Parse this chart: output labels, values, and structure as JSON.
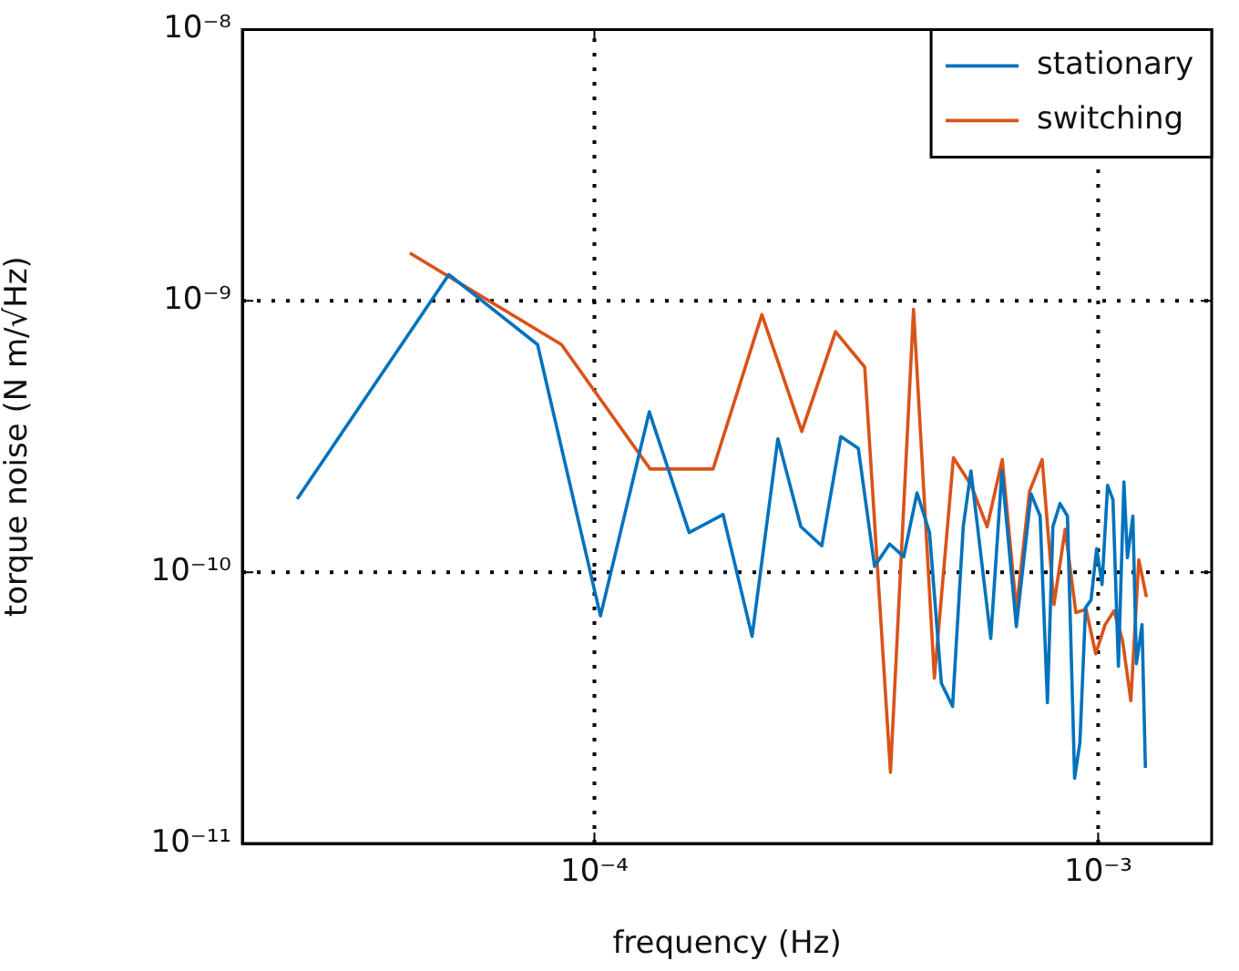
{
  "chart_data": {
    "type": "line",
    "xlabel": "frequency (Hz)",
    "ylabel": "torque noise (N m/√Hz)",
    "log": "xy",
    "grid": true,
    "legend": "top right",
    "line_style": "solid",
    "marker": "none",
    "xlim": [
      2e-05,
      0.00168
    ],
    "ylim": [
      1e-11,
      1e-08
    ],
    "xticks": [
      {
        "value": 0.0001,
        "label": "10⁻⁴"
      },
      {
        "value": 0.001,
        "label": "10⁻³"
      }
    ],
    "yticks": [
      {
        "value": 1e-11,
        "label": "10⁻¹¹"
      },
      {
        "value": 1e-10,
        "label": "10⁻¹⁰"
      },
      {
        "value": 1e-09,
        "label": "10⁻⁹"
      },
      {
        "value": 1e-08,
        "label": "10⁻⁸"
      }
    ],
    "series": [
      {
        "name": "stationary",
        "color": "#0072bd",
        "x": [
          2.57e-05,
          5.14e-05,
          7.71e-05,
          0.0001028,
          0.0001285,
          0.0001542,
          0.00018,
          0.0002056,
          0.0002313,
          0.000257,
          0.0002827,
          0.0003084,
          0.0003341,
          0.0003598,
          0.0003855,
          0.0004112,
          0.0004369,
          0.0004626,
          0.0004883,
          0.000514,
          0.0005397,
          0.000559,
          0.000612,
          0.000644,
          0.000688,
          0.000736,
          0.000767,
          0.000793,
          0.000813,
          0.00084,
          0.000869,
          0.000898,
          0.00092,
          0.000944,
          0.000968,
          0.000993,
          0.001018,
          0.001044,
          0.00107,
          0.001097,
          0.001125,
          0.001143,
          0.001172,
          0.001191,
          0.001222,
          0.001241
        ],
        "values": [
          1.86e-10,
          1.25e-09,
          6.9e-10,
          6.9e-11,
          3.9e-10,
          1.4e-10,
          1.63e-10,
          5.8e-11,
          3.1e-10,
          1.47e-10,
          1.25e-10,
          3.16e-10,
          2.86e-10,
          1.05e-10,
          1.27e-10,
          1.14e-10,
          1.96e-10,
          1.4e-10,
          3.9e-11,
          3.2e-11,
          1.47e-10,
          2.36e-10,
          5.7e-11,
          2.36e-10,
          6.3e-11,
          1.94e-10,
          1.61e-10,
          3.3e-11,
          1.47e-10,
          1.79e-10,
          1.61e-10,
          1.74e-11,
          2.36e-11,
          7.4e-11,
          7.9e-11,
          1.22e-10,
          9e-11,
          2.09e-10,
          1.85e-10,
          4.5e-11,
          2.15e-10,
          1.13e-10,
          1.61e-10,
          4.6e-11,
          6.4e-11,
          1.9e-11
        ]
      },
      {
        "name": "switching",
        "color": "#d95319",
        "x": [
          4.3e-05,
          8.6e-05,
          0.000129,
          0.000172,
          0.000215,
          0.000258,
          0.000301,
          0.000344,
          0.000387,
          0.00043,
          0.000473,
          0.000516,
          0.000559,
          0.000602,
          0.000645,
          0.000688,
          0.000731,
          0.000774,
          0.000817,
          0.00086,
          0.000903,
          0.000946,
          0.000989,
          0.001032,
          0.001075,
          0.001118,
          0.001161,
          0.001204,
          0.001247
        ],
        "values": [
          1.5e-09,
          6.9e-10,
          2.4e-10,
          2.4e-10,
          8.9e-10,
          3.3e-10,
          7.7e-10,
          5.7e-10,
          1.83e-11,
          9.3e-10,
          4.07e-11,
          2.64e-10,
          2.1e-10,
          1.47e-10,
          2.6e-10,
          7.3e-11,
          1.99e-10,
          2.6e-10,
          7.6e-11,
          1.44e-10,
          7.1e-11,
          7.3e-11,
          5e-11,
          6.4e-11,
          7.2e-11,
          5.6e-11,
          3.36e-11,
          1.11e-10,
          8.1e-11
        ]
      }
    ]
  }
}
